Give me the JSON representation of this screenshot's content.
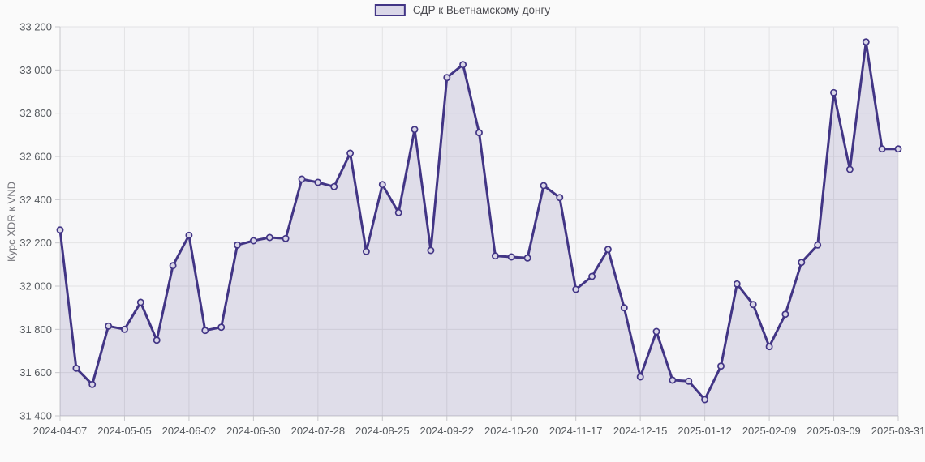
{
  "legend": {
    "label": "СДР к Вьетнамскому донгу"
  },
  "y_axis_title": "Курс XDR к VND",
  "colors": {
    "line": "#423585",
    "area_fill": "rgba(66,53,133,0.13)",
    "marker_fill": "#dad7e8",
    "plot_bg": "#f6f6f8",
    "grid": "#e3e3e5",
    "axis": "#c8c8cc",
    "tick_text": "#55595e"
  },
  "chart_data": {
    "type": "area",
    "title": "",
    "ylabel": "Курс XDR к VND",
    "legend_position": "top",
    "grid": true,
    "ylim": [
      31400,
      33200
    ],
    "series_name": "СДР к Вьетнамскому донгу",
    "x": [
      "2024-04-07",
      "2024-04-14",
      "2024-04-21",
      "2024-04-28",
      "2024-05-05",
      "2024-05-12",
      "2024-05-19",
      "2024-05-26",
      "2024-06-02",
      "2024-06-09",
      "2024-06-16",
      "2024-06-23",
      "2024-06-30",
      "2024-07-07",
      "2024-07-14",
      "2024-07-21",
      "2024-07-28",
      "2024-08-04",
      "2024-08-11",
      "2024-08-18",
      "2024-08-25",
      "2024-09-01",
      "2024-09-08",
      "2024-09-15",
      "2024-09-22",
      "2024-09-29",
      "2024-10-06",
      "2024-10-13",
      "2024-10-20",
      "2024-10-27",
      "2024-11-03",
      "2024-11-10",
      "2024-11-17",
      "2024-11-24",
      "2024-12-01",
      "2024-12-08",
      "2024-12-15",
      "2024-12-22",
      "2024-12-29",
      "2025-01-05",
      "2025-01-12",
      "2025-01-19",
      "2025-01-26",
      "2025-02-02",
      "2025-02-09",
      "2025-02-16",
      "2025-02-23",
      "2025-03-02",
      "2025-03-09",
      "2025-03-16",
      "2025-03-23",
      "2025-03-30",
      "2025-03-31"
    ],
    "values": [
      32260,
      31620,
      31545,
      31815,
      31800,
      31925,
      31750,
      32095,
      32235,
      31795,
      31810,
      32190,
      32210,
      32225,
      32220,
      32495,
      32480,
      32460,
      32615,
      32160,
      32470,
      32340,
      32725,
      32165,
      32965,
      33025,
      32710,
      32140,
      32135,
      32130,
      32465,
      32410,
      31985,
      32045,
      32170,
      31900,
      31580,
      31790,
      31565,
      31560,
      31475,
      31630,
      32010,
      31915,
      31720,
      31870,
      32110,
      32190,
      32895,
      32540,
      33130,
      32635,
      32635
    ],
    "x_tick_indices": [
      0,
      4,
      8,
      12,
      16,
      20,
      24,
      28,
      32,
      36,
      40,
      44,
      48,
      52
    ],
    "x_tick_labels": [
      "2024-04-07",
      "2024-05-05",
      "2024-06-02",
      "2024-06-30",
      "2024-07-28",
      "2024-08-25",
      "2024-09-22",
      "2024-10-20",
      "2024-11-17",
      "2024-12-15",
      "2025-01-12",
      "2025-02-09",
      "2025-03-09",
      "2025-03-31"
    ],
    "y_ticks": {
      "values": [
        31400,
        31600,
        31800,
        32000,
        32200,
        32400,
        32600,
        32800,
        33000,
        33200
      ],
      "labels": [
        "31 400",
        "31 600",
        "31 800",
        "32 000",
        "32 200",
        "32 400",
        "32 600",
        "32 800",
        "33 000",
        "33 200"
      ]
    }
  }
}
